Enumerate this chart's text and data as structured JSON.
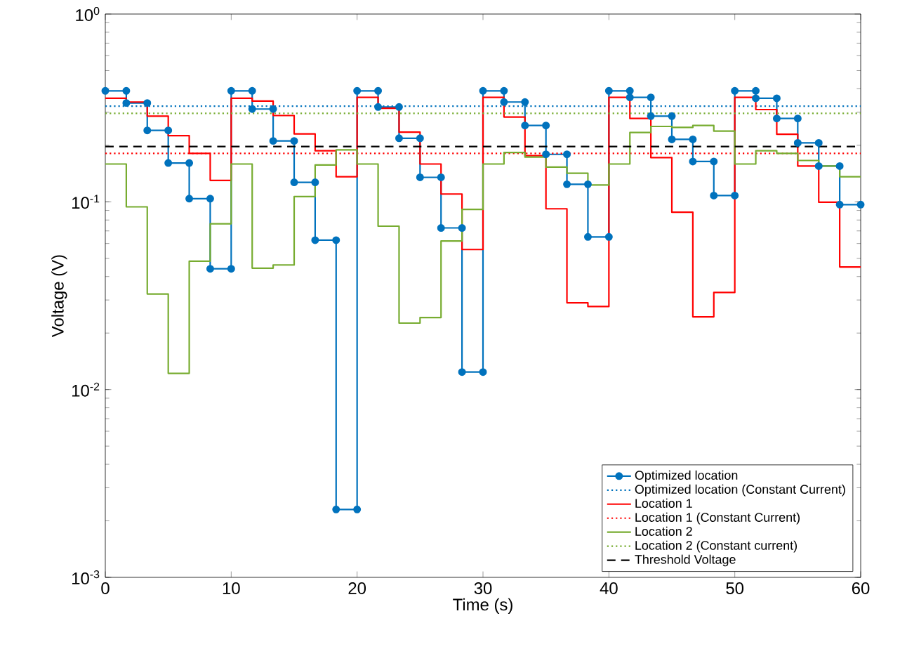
{
  "chart_data": {
    "type": "line",
    "xlabel": "Time (s)",
    "ylabel": "Voltage (V)",
    "log": "y",
    "legend": "bottom right",
    "grid": false,
    "xlim": [
      0,
      60
    ],
    "xticks": [
      0,
      10,
      20,
      30,
      40,
      50,
      60
    ],
    "ylim": [
      0.001,
      1
    ],
    "yticks": [
      {
        "value": 0.001,
        "label": "10$^{-3}$"
      },
      {
        "value": 0.01,
        "label": "10$^{-2}$"
      },
      {
        "value": 0.1,
        "label": "10$^{-1}$"
      },
      {
        "value": 1,
        "label": "10$^{0}$"
      }
    ],
    "series": [
      {
        "name": "Optimized location",
        "color": "#0072bd",
        "marker": "circle",
        "line_style": "solid",
        "x": [
          0,
          1.667,
          1.667,
          3.333,
          3.333,
          5,
          5,
          6.667,
          6.667,
          8.333,
          8.333,
          10,
          10,
          11.667,
          11.667,
          13.333,
          13.333,
          15,
          15,
          16.667,
          16.667,
          18.333,
          18.333,
          20,
          20,
          21.667,
          21.667,
          23.333,
          23.333,
          25,
          25,
          26.667,
          26.667,
          28.333,
          28.333,
          30,
          30,
          31.667,
          31.667,
          33.333,
          33.333,
          35,
          35,
          36.667,
          36.667,
          38.333,
          38.333,
          40,
          40,
          41.667,
          41.667,
          43.333,
          43.333,
          45,
          45,
          46.667,
          46.667,
          48.333,
          48.333,
          50,
          50,
          51.667,
          51.667,
          53.333,
          53.333,
          55,
          55,
          56.667,
          56.667,
          58.333,
          58.333,
          60
        ],
        "values": [
          0.39,
          0.39,
          0.336,
          0.336,
          0.24,
          0.24,
          0.161,
          0.161,
          0.104,
          0.104,
          0.044,
          0.044,
          0.39,
          0.39,
          0.312,
          0.312,
          0.211,
          0.211,
          0.127,
          0.127,
          0.0625,
          0.0625,
          0.0023,
          0.0023,
          0.39,
          0.39,
          0.32,
          0.32,
          0.218,
          0.218,
          0.135,
          0.135,
          0.0726,
          0.0726,
          0.0124,
          0.0124,
          0.39,
          0.39,
          0.34,
          0.34,
          0.255,
          0.255,
          0.179,
          0.179,
          0.124,
          0.124,
          0.065,
          0.065,
          0.39,
          0.39,
          0.36,
          0.36,
          0.286,
          0.286,
          0.215,
          0.215,
          0.164,
          0.164,
          0.108,
          0.108,
          0.39,
          0.39,
          0.356,
          0.356,
          0.278,
          0.278,
          0.206,
          0.206,
          0.155,
          0.155,
          0.0966,
          0.0966
        ]
      },
      {
        "name": "Optimized location (Constant Current)",
        "color": "#0072bd",
        "marker": "none",
        "line_style": "dotted",
        "x": [
          0,
          60
        ],
        "values": [
          0.323,
          0.323
        ]
      },
      {
        "name": "Location 1",
        "color": "#ff0000",
        "type": "step",
        "marker": "none",
        "line_style": "solid",
        "x": [
          0,
          1.667,
          3.333,
          5,
          6.667,
          8.333,
          10,
          11.667,
          13.333,
          15,
          16.667,
          18.333,
          20,
          21.667,
          23.333,
          25,
          26.667,
          28.333,
          30,
          31.667,
          33.333,
          35,
          36.667,
          38.333,
          40,
          41.667,
          43.333,
          45,
          46.667,
          48.333,
          50,
          51.667,
          53.333,
          55,
          56.667,
          58.333,
          60
        ],
        "values": [
          0.356,
          0.34,
          0.286,
          0.225,
          0.181,
          0.13,
          0.356,
          0.344,
          0.288,
          0.23,
          0.187,
          0.136,
          0.36,
          0.315,
          0.235,
          0.159,
          0.11,
          0.0557,
          0.36,
          0.283,
          0.176,
          0.0918,
          0.029,
          0.0277,
          0.36,
          0.278,
          0.172,
          0.088,
          0.0244,
          0.0329,
          0.36,
          0.31,
          0.229,
          0.155,
          0.0995,
          0.045,
          0.045
        ]
      },
      {
        "name": "Location 1 (Constant Current)",
        "color": "#ff0000",
        "marker": "none",
        "line_style": "dotted",
        "x": [
          0,
          60
        ],
        "values": [
          0.181,
          0.181
        ]
      },
      {
        "name": "Location 2",
        "color": "#77ac30",
        "type": "step",
        "marker": "none",
        "line_style": "solid",
        "x": [
          0,
          1.667,
          3.333,
          5,
          6.667,
          8.333,
          10,
          11.667,
          13.333,
          15,
          16.667,
          18.333,
          20,
          21.667,
          23.333,
          25,
          26.667,
          28.333,
          30,
          31.667,
          33.333,
          35,
          36.667,
          38.333,
          40,
          41.667,
          43.333,
          45,
          46.667,
          48.333,
          50,
          51.667,
          53.333,
          55,
          56.667,
          58.333,
          60
        ],
        "values": [
          0.159,
          0.094,
          0.0323,
          0.0122,
          0.0483,
          0.0764,
          0.159,
          0.0443,
          0.0461,
          0.1066,
          0.157,
          0.189,
          0.159,
          0.0742,
          0.0226,
          0.0242,
          0.0618,
          0.0912,
          0.159,
          0.183,
          0.173,
          0.153,
          0.142,
          0.123,
          0.159,
          0.234,
          0.252,
          0.249,
          0.255,
          0.238,
          0.159,
          0.187,
          0.181,
          0.166,
          0.155,
          0.136,
          0.136
        ]
      },
      {
        "name": "Location 2 (Constant current)",
        "color": "#77ac30",
        "marker": "none",
        "line_style": "dotted",
        "x": [
          0,
          60
        ],
        "values": [
          0.296,
          0.296
        ]
      },
      {
        "name": "Threshold Voltage",
        "color": "#000000",
        "marker": "none",
        "line_style": "dashed",
        "x": [
          0,
          60
        ],
        "values": [
          0.197,
          0.197
        ]
      }
    ]
  }
}
